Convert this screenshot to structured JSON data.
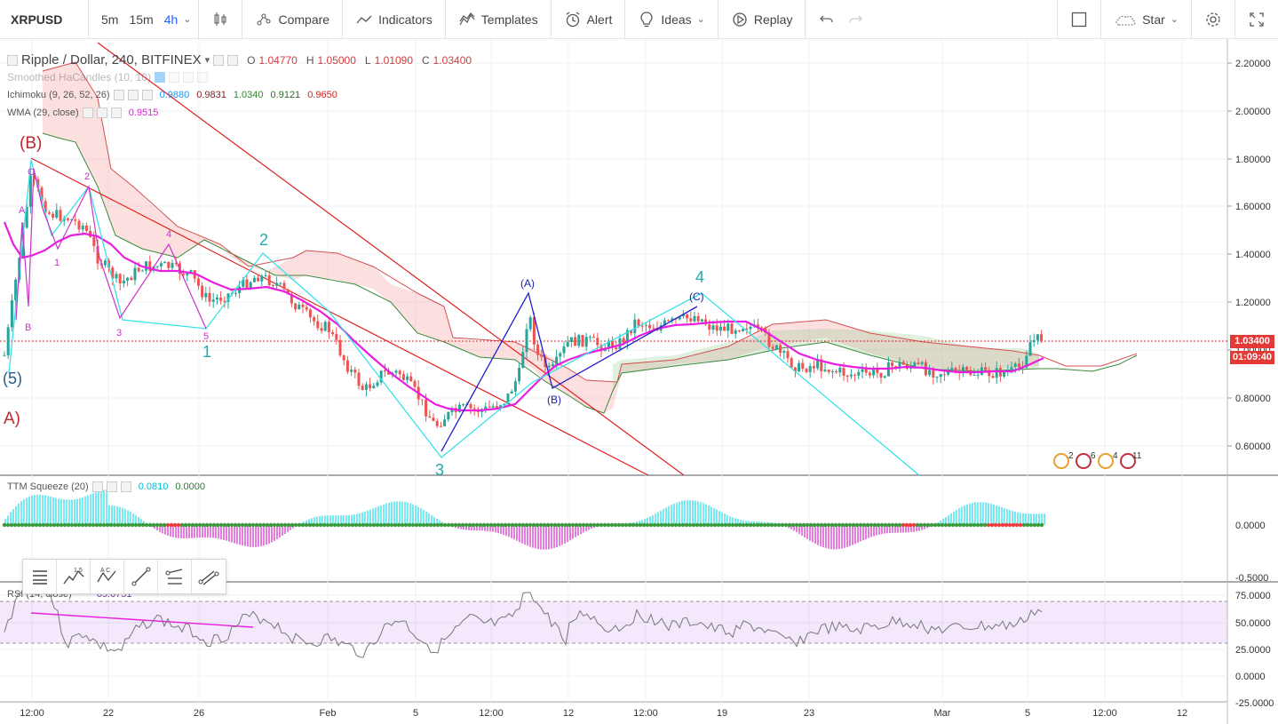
{
  "toolbar": {
    "symbol": "XRPUSD",
    "intervals": [
      "5m",
      "15m",
      "4h"
    ],
    "active_interval": "4h",
    "compare": "Compare",
    "indicators": "Indicators",
    "templates": "Templates",
    "alert": "Alert",
    "ideas": "Ideas",
    "replay": "Replay",
    "star": "Star"
  },
  "legend": {
    "title": "Ripple / Dollar, 240, BITFINEX",
    "open_k": "O",
    "open": "1.04770",
    "high_k": "H",
    "high": "1.05000",
    "low_k": "L",
    "low": "1.01090",
    "close_k": "C",
    "close": "1.03400",
    "smoothed": "Smoothed HaCandles (10, 10)",
    "ichimoku": "Ichimoku (9, 26, 52, 26)",
    "ichimoku_values": [
      "0.9880",
      "0.9831",
      "1.0340",
      "0.9121",
      "0.9650"
    ],
    "wma": "WMA (29, close)",
    "wma_value": "0.9515",
    "ttm": "TTM Squeeze (20)",
    "ttm_values": [
      "0.0810",
      "0.0000"
    ],
    "rsi": "RSI (14, close)",
    "rsi_value": "65.6751"
  },
  "price_axis": {
    "main_ticks": [
      "2.20000",
      "2.00000",
      "1.80000",
      "1.60000",
      "1.40000",
      "1.20000",
      "1.00000",
      "0.80000",
      "0.60000"
    ],
    "current_price": "1.03400",
    "countdown": "01:09:40",
    "ttm_ticks": [
      "0.0000",
      "-0.5000"
    ],
    "rsi_ticks": [
      "75.0000",
      "50.0000",
      "25.0000",
      "0.0000",
      "-25.0000"
    ]
  },
  "time_axis": [
    "12:00",
    "22",
    "26",
    "Feb",
    "5",
    "12:00",
    "12",
    "12:00",
    "19",
    "23",
    "Mar",
    "5",
    "12:00",
    "12"
  ],
  "wave_labels": {
    "b_main": "(B)",
    "a_main": "A)",
    "five_left": "(5)",
    "one": "1",
    "two": "2",
    "three": "3",
    "four": "4",
    "a_mid": "(A)",
    "b_mid": "(B)",
    "c_mid": "(C)",
    "sub_a": "A",
    "sub_b": "B",
    "sub_c": "C",
    "m1": "1",
    "m2": "2",
    "m3": "3",
    "m4": "4",
    "m5": "5"
  },
  "events": [
    "2",
    "6",
    "4",
    "11"
  ],
  "colors": {
    "up": "#26a69a",
    "down": "#ef5350",
    "wma": "#e91ee0",
    "cyan": "#3be0e8",
    "trend_red": "#e02020",
    "wave_blue": "#1a1acc"
  }
}
